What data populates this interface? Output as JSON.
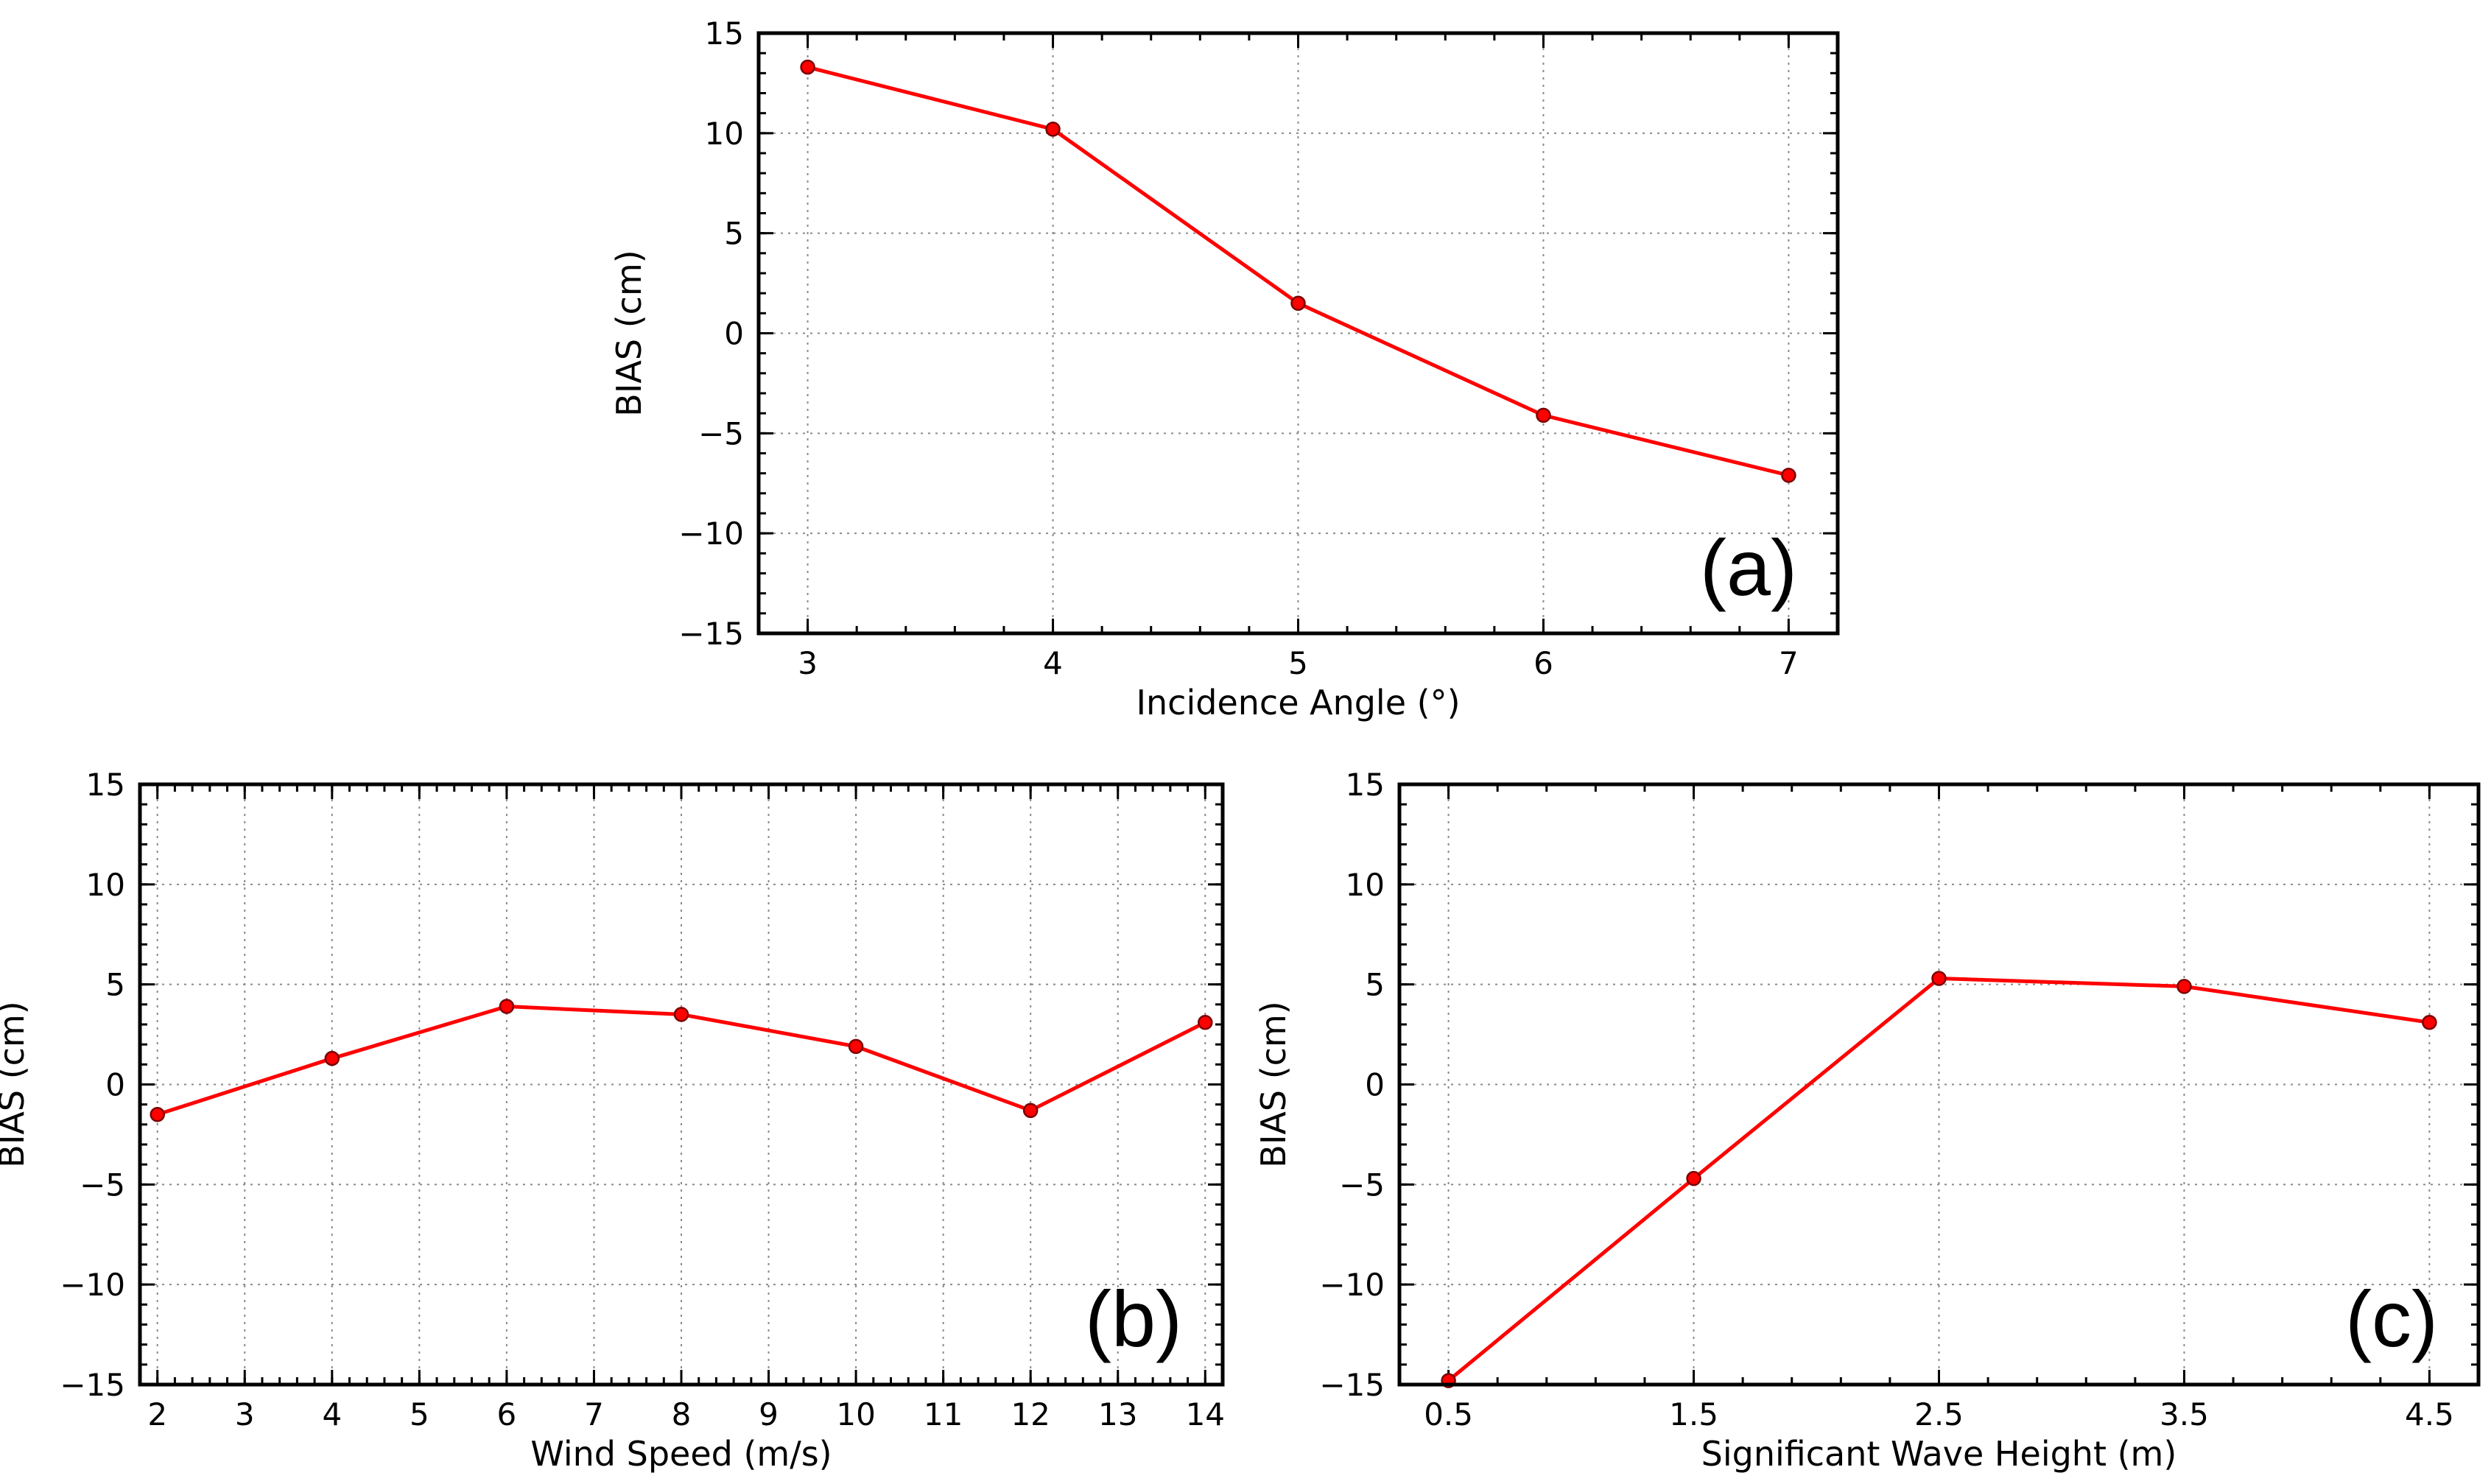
{
  "colors": {
    "series": "#ff0000",
    "marker_edge": "#7a0000"
  },
  "chart_data": [
    {
      "id": "a",
      "type": "line",
      "panel_label": "(a)",
      "xlabel": "Incidence Angle (°)",
      "ylabel": "BIAS (cm)",
      "x": [
        3,
        4,
        5,
        6,
        7
      ],
      "y": [
        13.3,
        10.2,
        1.5,
        -4.1,
        -7.1
      ],
      "xlim": [
        2.8,
        7.2
      ],
      "ylim": [
        -15,
        15
      ],
      "xticks": [
        3,
        4,
        5,
        6,
        7
      ],
      "xtick_labels": [
        "3",
        "4",
        "5",
        "6",
        "7"
      ],
      "yticks": [
        -15,
        -10,
        -5,
        0,
        5,
        10,
        15
      ],
      "ytick_labels": [
        "−15",
        "−10",
        "−5",
        "0",
        "5",
        "10",
        "15"
      ],
      "grid": true
    },
    {
      "id": "b",
      "type": "line",
      "panel_label": "(b)",
      "xlabel": "Wind Speed (m/s)",
      "ylabel": "BIAS (cm)",
      "x": [
        2,
        4,
        6,
        8,
        10,
        12,
        14
      ],
      "y": [
        -1.5,
        1.3,
        3.9,
        3.5,
        1.9,
        -1.3,
        3.1
      ],
      "xlim": [
        1.8,
        14.2
      ],
      "ylim": [
        -15,
        15
      ],
      "xticks": [
        2,
        3,
        4,
        5,
        6,
        7,
        8,
        9,
        10,
        11,
        12,
        13,
        14
      ],
      "xtick_labels": [
        "2",
        "3",
        "4",
        "5",
        "6",
        "7",
        "8",
        "9",
        "10",
        "11",
        "12",
        "13",
        "14"
      ],
      "yticks": [
        -15,
        -10,
        -5,
        0,
        5,
        10,
        15
      ],
      "ytick_labels": [
        "−15",
        "−10",
        "−5",
        "0",
        "5",
        "10",
        "15"
      ],
      "grid": true
    },
    {
      "id": "c",
      "type": "line",
      "panel_label": "(c)",
      "xlabel": "Significant Wave Height (m)",
      "ylabel": "BIAS (cm)",
      "x": [
        0.5,
        1.5,
        2.5,
        3.5,
        4.5
      ],
      "y": [
        -14.8,
        -4.7,
        5.3,
        4.9,
        3.1
      ],
      "xlim": [
        0.3,
        4.7
      ],
      "ylim": [
        -15,
        15
      ],
      "xticks": [
        0.5,
        1.5,
        2.5,
        3.5,
        4.5
      ],
      "xtick_labels": [
        "0.5",
        "1.5",
        "2.5",
        "3.5",
        "4.5"
      ],
      "yticks": [
        -15,
        -10,
        -5,
        0,
        5,
        10,
        15
      ],
      "ytick_labels": [
        "−15",
        "−10",
        "−5",
        "0",
        "5",
        "10",
        "15"
      ],
      "grid": true
    }
  ]
}
